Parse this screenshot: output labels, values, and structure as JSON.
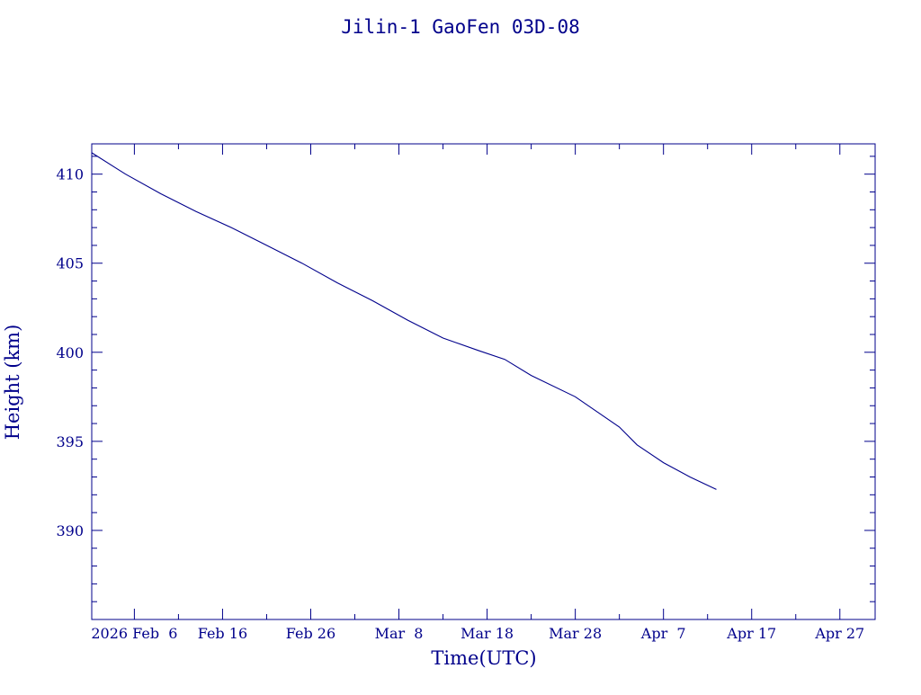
{
  "chart_data": {
    "type": "line",
    "title": "Jilin-1 GaoFen 03D-08",
    "xlabel": "Time(UTC)",
    "ylabel": "Height (km)",
    "x_axis_type": "date",
    "xlim": [
      "2026-02-01T04:00",
      "2026-05-01T00:00"
    ],
    "ylim": [
      385,
      411.7
    ],
    "y_ticks": [
      390,
      395,
      400,
      405,
      410
    ],
    "x_ticks": [
      {
        "date": "2026-02-06",
        "label": "2026 Feb  6"
      },
      {
        "date": "2026-02-16",
        "label": "Feb 16"
      },
      {
        "date": "2026-02-26",
        "label": "Feb 26"
      },
      {
        "date": "2026-03-08",
        "label": "Mar  8"
      },
      {
        "date": "2026-03-18",
        "label": "Mar 18"
      },
      {
        "date": "2026-03-28",
        "label": "Mar 28"
      },
      {
        "date": "2026-04-07",
        "label": "Apr  7"
      },
      {
        "date": "2026-04-17",
        "label": "Apr 17"
      },
      {
        "date": "2026-04-27",
        "label": "Apr 27"
      }
    ],
    "grid": false,
    "series": [
      {
        "color": "#00008b",
        "points": [
          {
            "x": "2026-02-01T04:00",
            "y": 411.2
          },
          {
            "x": "2026-02-05T00:00",
            "y": 410.0
          },
          {
            "x": "2026-02-09T00:00",
            "y": 408.9
          },
          {
            "x": "2026-02-13T00:00",
            "y": 407.9
          },
          {
            "x": "2026-02-17T00:00",
            "y": 407.0
          },
          {
            "x": "2026-02-21T00:00",
            "y": 406.0
          },
          {
            "x": "2026-02-25T00:00",
            "y": 405.0
          },
          {
            "x": "2026-03-01T00:00",
            "y": 403.9
          },
          {
            "x": "2026-03-05T00:00",
            "y": 402.9
          },
          {
            "x": "2026-03-09T00:00",
            "y": 401.8
          },
          {
            "x": "2026-03-13T00:00",
            "y": 400.8
          },
          {
            "x": "2026-03-17T00:00",
            "y": 400.1
          },
          {
            "x": "2026-03-20T00:00",
            "y": 399.6
          },
          {
            "x": "2026-03-23T00:00",
            "y": 398.7
          },
          {
            "x": "2026-03-28T00:00",
            "y": 397.5
          },
          {
            "x": "2026-04-02T00:00",
            "y": 395.8
          },
          {
            "x": "2026-04-04T00:00",
            "y": 394.8
          },
          {
            "x": "2026-04-07T00:00",
            "y": 393.8
          },
          {
            "x": "2026-04-10T00:00",
            "y": 393.0
          },
          {
            "x": "2026-04-13T00:00",
            "y": 392.3
          }
        ]
      }
    ]
  }
}
